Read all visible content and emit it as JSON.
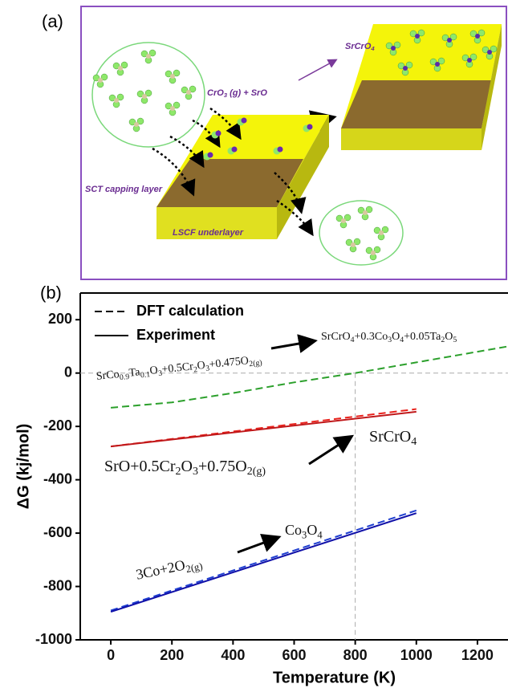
{
  "panel_a": {
    "label": "(a)",
    "product": [
      "SrCrO",
      "4"
    ],
    "reactants": [
      "CrO",
      "3",
      " (g)  + SrO"
    ],
    "capping": "SCT capping layer",
    "underlayer": "LSCF underlayer"
  },
  "chart_data": {
    "type": "line",
    "label": "(b)",
    "xlabel": "Temperature (K)",
    "ylabel": "ΔG (kj/mol)",
    "xlim": [
      -100,
      1300
    ],
    "ylim": [
      -1000,
      300
    ],
    "xticks": [
      0,
      200,
      400,
      600,
      800,
      1000,
      1200
    ],
    "yticks": [
      -1000,
      -800,
      -600,
      -400,
      -200,
      0,
      200
    ],
    "hline": 0,
    "vline": 800,
    "legend": [
      {
        "name": "DFT calculation",
        "dashed": true
      },
      {
        "name": "Experiment",
        "dashed": false
      }
    ],
    "series": [
      {
        "color": "#2ca02c",
        "dashed": true,
        "x": [
          0,
          200,
          400,
          600,
          800,
          1000,
          1200,
          1300
        ],
        "values": [
          -130,
          -110,
          -75,
          -35,
          0,
          40,
          80,
          100
        ]
      },
      {
        "color": "#e8221c",
        "dashed": true,
        "x": [
          0,
          1000
        ],
        "values": [
          -275,
          -135
        ]
      },
      {
        "color": "#c0181a",
        "dashed": false,
        "x": [
          0,
          1000
        ],
        "values": [
          -275,
          -145
        ]
      },
      {
        "color": "#1f3fd0",
        "dashed": true,
        "x": [
          0,
          1000
        ],
        "values": [
          -890,
          -515
        ]
      },
      {
        "color": "#1010a8",
        "dashed": false,
        "x": [
          0,
          1000
        ],
        "values": [
          -895,
          -525
        ]
      }
    ],
    "annotations": [
      [
        "SrCo",
        "0.9",
        "Ta",
        "0.1",
        "O",
        "3",
        "+0.5Cr",
        "2",
        "O",
        "3",
        "+0.475O",
        "2(g)"
      ],
      [
        "SrCrO",
        "4",
        "+0.3Co",
        "3",
        "O",
        "4",
        "+0.05Ta",
        "2",
        "O",
        "5"
      ],
      [
        "SrO+0.5Cr",
        "2",
        "O",
        "3",
        "+0.75O",
        "2(g)"
      ],
      [
        "SrCrO",
        "4"
      ],
      [
        "3Co+2O",
        "2(g)"
      ],
      [
        "Co",
        "3",
        "O",
        "4"
      ]
    ]
  }
}
